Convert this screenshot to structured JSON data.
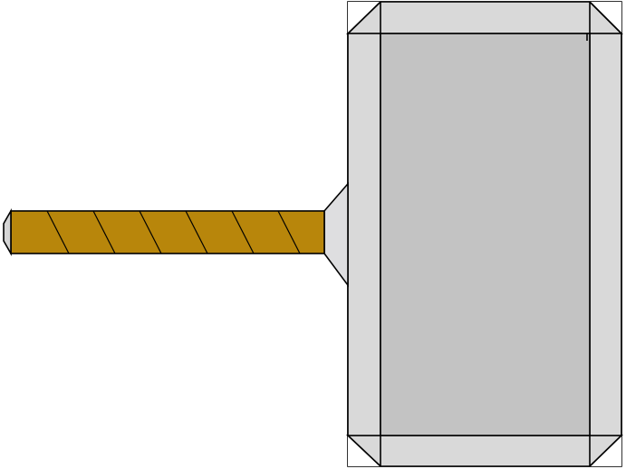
{
  "diagram": {
    "subject": "hammer",
    "colors": {
      "background": "#ffffff",
      "outline": "#000000",
      "head_face": "#c3c3c3",
      "head_bevel": "#d9d9d9",
      "collar": "#dedee0",
      "handle_wood": "#b8860b",
      "pommel": "#d6d6d6"
    },
    "handle": {
      "wrap_stripe_count": 6
    }
  }
}
